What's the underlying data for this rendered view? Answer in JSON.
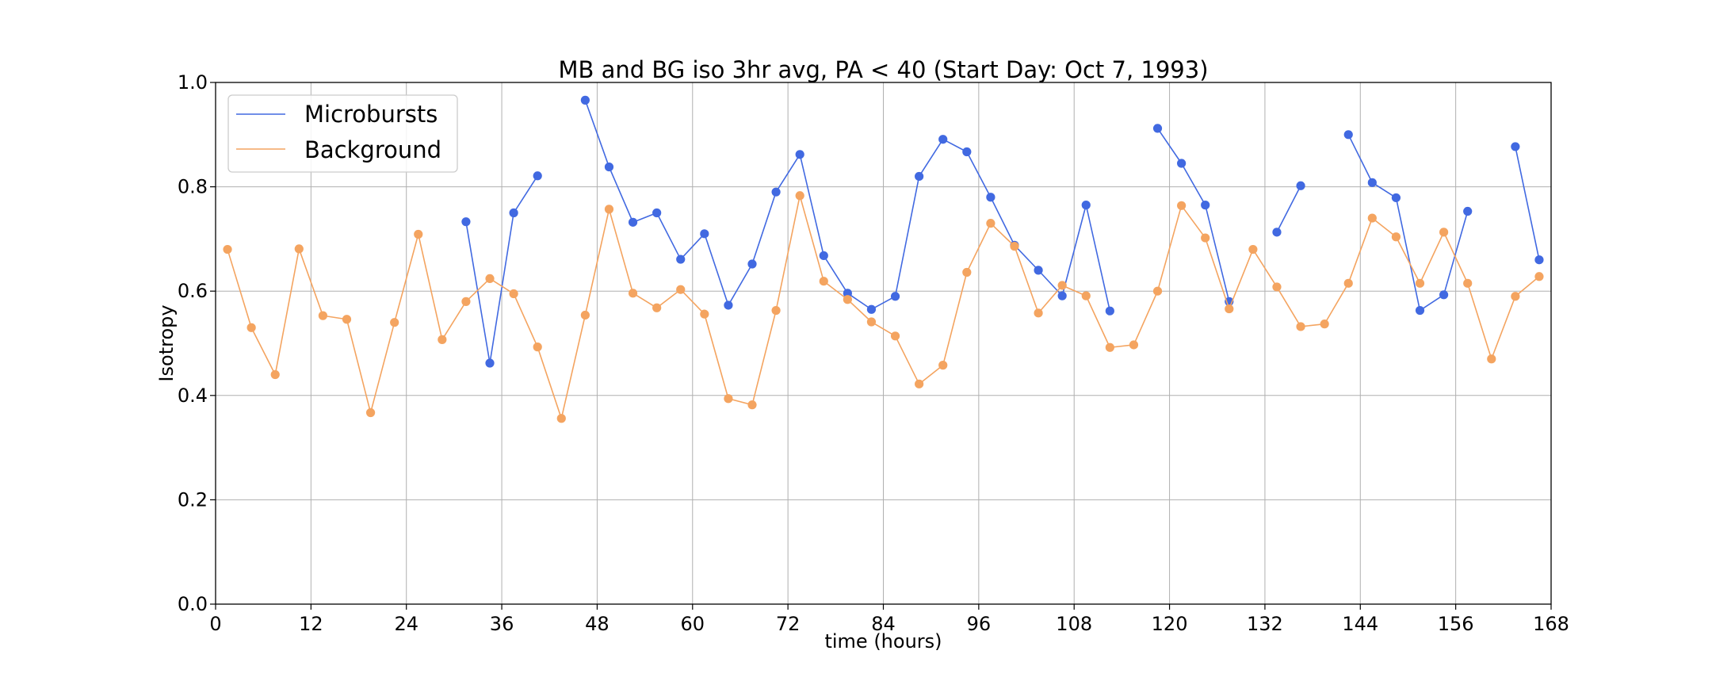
{
  "chart_data": {
    "type": "line",
    "title": "MB and BG iso 3hr avg, PA < 40 (Start Day: Oct 7, 1993)",
    "xlabel": "time (hours)",
    "ylabel": "Isotropy",
    "xlim": [
      0,
      168
    ],
    "ylim": [
      0.0,
      1.0
    ],
    "xticks": [
      "0",
      "12",
      "24",
      "36",
      "48",
      "60",
      "72",
      "84",
      "96",
      "108",
      "120",
      "132",
      "144",
      "156",
      "168"
    ],
    "yticks": [
      "0.0",
      "0.2",
      "0.4",
      "0.6",
      "0.8",
      "1.0"
    ],
    "grid": true,
    "legend_position": "top-left",
    "series": [
      {
        "name": "Microbursts",
        "color": "#4169e1",
        "points": [
          [
            1.5,
            null
          ],
          [
            4.5,
            null
          ],
          [
            7.5,
            null
          ],
          [
            10.5,
            null
          ],
          [
            13.5,
            null
          ],
          [
            16.5,
            null
          ],
          [
            19.5,
            null
          ],
          [
            22.5,
            null
          ],
          [
            25.5,
            null
          ],
          [
            28.5,
            null
          ],
          [
            31.5,
            0.733
          ],
          [
            34.5,
            0.462
          ],
          [
            37.5,
            0.75
          ],
          [
            40.5,
            0.821
          ],
          [
            43.5,
            null
          ],
          [
            46.5,
            0.966
          ],
          [
            49.5,
            0.838
          ],
          [
            52.5,
            0.732
          ],
          [
            55.5,
            0.75
          ],
          [
            58.5,
            0.661
          ],
          [
            61.5,
            0.71
          ],
          [
            64.5,
            0.573
          ],
          [
            67.5,
            0.652
          ],
          [
            70.5,
            0.79
          ],
          [
            73.5,
            0.862
          ],
          [
            76.5,
            0.668
          ],
          [
            79.5,
            0.596
          ],
          [
            82.5,
            0.565
          ],
          [
            85.5,
            0.59
          ],
          [
            88.5,
            0.82
          ],
          [
            91.5,
            0.891
          ],
          [
            94.5,
            0.867
          ],
          [
            97.5,
            0.78
          ],
          [
            100.5,
            0.688
          ],
          [
            103.5,
            0.64
          ],
          [
            106.5,
            0.591
          ],
          [
            109.5,
            0.765
          ],
          [
            112.5,
            0.562
          ],
          [
            115.5,
            null
          ],
          [
            118.5,
            0.912
          ],
          [
            121.5,
            0.845
          ],
          [
            124.5,
            0.765
          ],
          [
            127.5,
            0.58
          ],
          [
            130.5,
            null
          ],
          [
            133.5,
            0.713
          ],
          [
            136.5,
            0.802
          ],
          [
            139.5,
            null
          ],
          [
            142.5,
            0.9
          ],
          [
            145.5,
            0.808
          ],
          [
            148.5,
            0.779
          ],
          [
            151.5,
            0.563
          ],
          [
            154.5,
            0.593
          ],
          [
            157.5,
            0.753
          ],
          [
            160.5,
            null
          ],
          [
            163.5,
            0.877
          ],
          [
            166.5,
            0.66
          ]
        ]
      },
      {
        "name": "Background",
        "color": "#f4a460",
        "points": [
          [
            1.5,
            0.68
          ],
          [
            4.5,
            0.53
          ],
          [
            7.5,
            0.44
          ],
          [
            10.5,
            0.681
          ],
          [
            13.5,
            0.553
          ],
          [
            16.5,
            0.546
          ],
          [
            19.5,
            0.367
          ],
          [
            22.5,
            0.54
          ],
          [
            25.5,
            0.709
          ],
          [
            28.5,
            0.507
          ],
          [
            31.5,
            0.58
          ],
          [
            34.5,
            0.624
          ],
          [
            37.5,
            0.595
          ],
          [
            40.5,
            0.493
          ],
          [
            43.5,
            0.356
          ],
          [
            46.5,
            0.554
          ],
          [
            49.5,
            0.757
          ],
          [
            52.5,
            0.596
          ],
          [
            55.5,
            0.568
          ],
          [
            58.5,
            0.603
          ],
          [
            61.5,
            0.556
          ],
          [
            64.5,
            0.394
          ],
          [
            67.5,
            0.382
          ],
          [
            70.5,
            0.563
          ],
          [
            73.5,
            0.783
          ],
          [
            76.5,
            0.619
          ],
          [
            79.5,
            0.584
          ],
          [
            82.5,
            0.541
          ],
          [
            85.5,
            0.514
          ],
          [
            88.5,
            0.422
          ],
          [
            91.5,
            0.458
          ],
          [
            94.5,
            0.636
          ],
          [
            97.5,
            0.73
          ],
          [
            100.5,
            0.686
          ],
          [
            103.5,
            0.558
          ],
          [
            106.5,
            0.611
          ],
          [
            109.5,
            0.591
          ],
          [
            112.5,
            0.492
          ],
          [
            115.5,
            0.497
          ],
          [
            118.5,
            0.6
          ],
          [
            121.5,
            0.764
          ],
          [
            124.5,
            0.702
          ],
          [
            127.5,
            0.566
          ],
          [
            130.5,
            0.68
          ],
          [
            133.5,
            0.608
          ],
          [
            136.5,
            0.532
          ],
          [
            139.5,
            0.537
          ],
          [
            142.5,
            0.615
          ],
          [
            145.5,
            0.74
          ],
          [
            148.5,
            0.704
          ],
          [
            151.5,
            0.615
          ],
          [
            154.5,
            0.713
          ],
          [
            157.5,
            0.615
          ],
          [
            160.5,
            0.47
          ],
          [
            163.5,
            0.59
          ],
          [
            166.5,
            0.628
          ]
        ]
      }
    ]
  }
}
